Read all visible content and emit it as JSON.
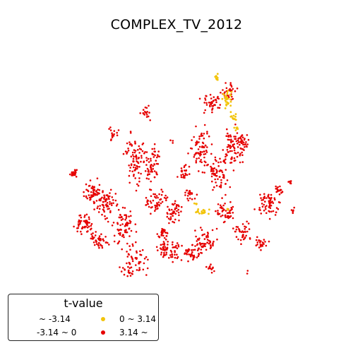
{
  "title": "COMPLEX_TV_2012",
  "legend": {
    "title": "t-value",
    "items": [
      {
        "label": "~ -3.14",
        "color": "none"
      },
      {
        "label": "-3.14 ~ 0",
        "color": "none"
      },
      {
        "label": "0 ~ 3.14",
        "color": "#f2c40b"
      },
      {
        "label": "3.14 ~",
        "color": "#e60000"
      }
    ]
  },
  "colors": {
    "positive_low": "#f2c40b",
    "positive_high": "#e60000"
  }
}
